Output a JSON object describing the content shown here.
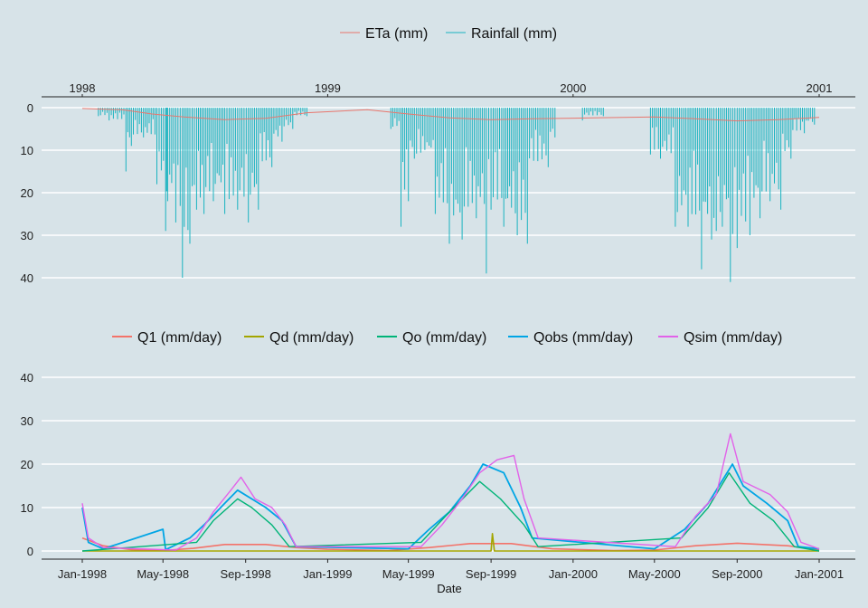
{
  "colors": {
    "background": "#d7e3e8",
    "gridline": "#ffffff",
    "axis": "#222222",
    "ETa": "#e8766d",
    "Rainfall": "#1ab3c0",
    "Q1": "#f3736a",
    "Qd": "#a3a500",
    "Qo": "#00b478",
    "Qobs": "#00a5e5",
    "Qsim": "#e262e9"
  },
  "chart_data": [
    {
      "type": "line",
      "panel": "top",
      "x_type": "date",
      "xlim": [
        "1998-01-01",
        "2001-01-01"
      ],
      "top_axis_ticks": [
        "1998",
        "1999",
        "2000",
        "2001"
      ],
      "y_axis_reversed": true,
      "ylim": [
        0,
        43
      ],
      "y_ticks": [
        0,
        10,
        20,
        30,
        40
      ],
      "legend_position": "top",
      "legend": [
        "ETa (mm)",
        "Rainfall (mm)"
      ],
      "series": [
        {
          "name": "ETa (mm)",
          "color_key": "ETa",
          "points": [
            [
              "1998-01-01",
              0.2
            ],
            [
              "1998-03-01",
              0.5
            ],
            [
              "1998-04-15",
              1.5
            ],
            [
              "1998-06-01",
              2.2
            ],
            [
              "1998-08-01",
              2.8
            ],
            [
              "1998-10-01",
              2.5
            ],
            [
              "1998-12-01",
              1.2
            ],
            [
              "1999-03-01",
              0.5
            ],
            [
              "1999-05-01",
              1.5
            ],
            [
              "1999-07-01",
              2.4
            ],
            [
              "1999-09-01",
              2.8
            ],
            [
              "1999-11-01",
              2.6
            ],
            [
              "2000-02-01",
              2.4
            ],
            [
              "2000-05-01",
              2.2
            ],
            [
              "2000-07-01",
              2.6
            ],
            [
              "2000-09-01",
              3.1
            ],
            [
              "2000-11-01",
              2.8
            ],
            [
              "2001-01-01",
              2.3
            ]
          ]
        },
        {
          "name": "Rainfall (mm)",
          "color_key": "Rainfall",
          "values": [
            [
              "1998-01-25",
              2
            ],
            [
              "1998-02-10",
              3
            ],
            [
              "1998-03-07",
              15
            ],
            [
              "1998-03-15",
              9
            ],
            [
              "1998-04-02",
              7
            ],
            [
              "1998-04-22",
              18
            ],
            [
              "1998-05-05",
              29
            ],
            [
              "1998-05-08",
              22
            ],
            [
              "1998-05-20",
              27
            ],
            [
              "1998-05-30",
              40
            ],
            [
              "1998-06-10",
              32
            ],
            [
              "1998-06-20",
              24
            ],
            [
              "1998-07-01",
              25
            ],
            [
              "1998-07-15",
              22
            ],
            [
              "1998-08-01",
              25
            ],
            [
              "1998-08-20",
              24
            ],
            [
              "1998-09-05",
              27
            ],
            [
              "1998-09-20",
              24
            ],
            [
              "1998-10-10",
              14
            ],
            [
              "1998-10-25",
              8
            ],
            [
              "1998-11-10",
              5
            ],
            [
              "1998-12-01",
              2
            ],
            [
              "1999-04-05",
              5
            ],
            [
              "1999-04-20",
              28
            ],
            [
              "1999-05-01",
              22
            ],
            [
              "1999-05-10",
              12
            ],
            [
              "1999-06-10",
              25
            ],
            [
              "1999-07-01",
              32
            ],
            [
              "1999-07-20",
              31
            ],
            [
              "1999-08-10",
              26
            ],
            [
              "1999-08-25",
              39
            ],
            [
              "1999-09-01",
              24
            ],
            [
              "1999-09-20",
              28
            ],
            [
              "1999-10-10",
              30
            ],
            [
              "1999-10-25",
              32
            ],
            [
              "1999-11-25",
              14
            ],
            [
              "1999-12-05",
              7
            ],
            [
              "2000-01-15",
              3
            ],
            [
              "2000-02-15",
              2
            ],
            [
              "2000-04-25",
              11
            ],
            [
              "2000-05-10",
              12
            ],
            [
              "2000-06-01",
              28
            ],
            [
              "2000-06-20",
              28
            ],
            [
              "2000-07-10",
              38
            ],
            [
              "2000-07-25",
              31
            ],
            [
              "2000-08-01",
              29
            ],
            [
              "2000-08-10",
              28
            ],
            [
              "2000-08-22",
              41
            ],
            [
              "2000-09-01",
              33
            ],
            [
              "2000-09-20",
              30
            ],
            [
              "2000-10-05",
              26
            ],
            [
              "2000-10-20",
              22
            ],
            [
              "2000-11-05",
              24
            ],
            [
              "2000-11-20",
              12
            ],
            [
              "2000-12-10",
              6
            ],
            [
              "2000-12-25",
              4
            ]
          ]
        }
      ]
    },
    {
      "type": "line",
      "panel": "bottom",
      "x_type": "date",
      "xlim": [
        "1998-01-01",
        "2001-01-01"
      ],
      "x_tick_labels": [
        "Jan-1998",
        "May-1998",
        "Sep-1998",
        "Jan-1999",
        "May-1999",
        "Sep-1999",
        "Jan-2000",
        "May-2000",
        "Sep-2000",
        "Jan-2001"
      ],
      "xlabel": "Date",
      "ylim": [
        0,
        43
      ],
      "y_ticks": [
        0,
        10,
        20,
        30,
        40
      ],
      "legend_position": "top",
      "legend": [
        "Q1 (mm/day)",
        "Qd (mm/day)",
        "Qo (mm/day)",
        "Qobs (mm/day)",
        "Qsim (mm/day)"
      ],
      "series": [
        {
          "name": "Q1 (mm/day)",
          "color_key": "Q1",
          "points": [
            [
              "1998-01-01",
              3
            ],
            [
              "1998-02-01",
              1.2
            ],
            [
              "1998-03-15",
              0.3
            ],
            [
              "1998-05-01",
              0.1
            ],
            [
              "1998-06-15",
              0.6
            ],
            [
              "1998-08-01",
              1.5
            ],
            [
              "1998-10-01",
              1.5
            ],
            [
              "1998-11-15",
              0.8
            ],
            [
              "1999-01-01",
              0.4
            ],
            [
              "1999-04-01",
              0.1
            ],
            [
              "1999-06-01",
              0.8
            ],
            [
              "1999-08-01",
              1.7
            ],
            [
              "1999-10-01",
              1.7
            ],
            [
              "1999-12-01",
              0.5
            ],
            [
              "2000-03-01",
              0.1
            ],
            [
              "2000-05-01",
              0.2
            ],
            [
              "2000-07-01",
              1.2
            ],
            [
              "2000-09-01",
              1.8
            ],
            [
              "2000-11-15",
              1.2
            ],
            [
              "2001-01-01",
              0.3
            ]
          ]
        },
        {
          "name": "Qd (mm/day)",
          "color_key": "Qd",
          "points": [
            [
              "1998-01-01",
              0
            ],
            [
              "1999-09-01",
              0
            ],
            [
              "1999-09-03",
              4
            ],
            [
              "1999-09-06",
              0
            ],
            [
              "2001-01-01",
              0
            ]
          ]
        },
        {
          "name": "Qo (mm/day)",
          "color_key": "Qo",
          "points": [
            [
              "1998-01-01",
              0
            ],
            [
              "1998-06-20",
              2
            ],
            [
              "1998-07-15",
              7
            ],
            [
              "1998-08-20",
              12
            ],
            [
              "1998-09-10",
              10
            ],
            [
              "1998-10-10",
              6
            ],
            [
              "1998-11-05",
              1
            ],
            [
              "1999-05-20",
              2
            ],
            [
              "1999-06-25",
              8
            ],
            [
              "1999-08-15",
              16
            ],
            [
              "1999-09-15",
              12
            ],
            [
              "1999-10-20",
              6
            ],
            [
              "1999-11-10",
              1
            ],
            [
              "2000-06-10",
              3
            ],
            [
              "2000-07-20",
              10
            ],
            [
              "2000-08-20",
              18
            ],
            [
              "2000-09-20",
              11
            ],
            [
              "2000-10-25",
              7
            ],
            [
              "2000-11-25",
              1
            ],
            [
              "2001-01-01",
              0
            ]
          ]
        },
        {
          "name": "Qobs (mm/day)",
          "color_key": "Qobs",
          "points": [
            [
              "1998-01-01",
              10
            ],
            [
              "1998-01-10",
              2
            ],
            [
              "1998-02-01",
              0.5
            ],
            [
              "1998-05-01",
              5
            ],
            [
              "1998-05-05",
              0.3
            ],
            [
              "1998-06-10",
              3
            ],
            [
              "1998-07-01",
              6
            ],
            [
              "1998-08-01",
              11
            ],
            [
              "1998-08-20",
              14
            ],
            [
              "1998-09-10",
              12
            ],
            [
              "1998-10-01",
              10
            ],
            [
              "1998-10-25",
              7
            ],
            [
              "1998-11-15",
              1
            ],
            [
              "1999-05-01",
              0.5
            ],
            [
              "1999-06-01",
              5
            ],
            [
              "1999-07-01",
              9
            ],
            [
              "1999-08-01",
              15
            ],
            [
              "1999-08-20",
              20
            ],
            [
              "1999-09-20",
              18
            ],
            [
              "1999-10-15",
              10
            ],
            [
              "1999-11-01",
              3
            ],
            [
              "2000-05-01",
              0.5
            ],
            [
              "2000-06-15",
              5
            ],
            [
              "2000-07-20",
              11
            ],
            [
              "2000-08-25",
              20
            ],
            [
              "2000-09-10",
              15
            ],
            [
              "2000-10-15",
              11
            ],
            [
              "2000-11-15",
              7
            ],
            [
              "2000-12-01",
              1
            ],
            [
              "2001-01-01",
              0.5
            ]
          ]
        },
        {
          "name": "Qsim (mm/day)",
          "color_key": "Qsim",
          "points": [
            [
              "1998-01-01",
              11
            ],
            [
              "1998-01-10",
              3
            ],
            [
              "1998-02-01",
              0.8
            ],
            [
              "1998-05-20",
              0.2
            ],
            [
              "1998-06-20",
              3
            ],
            [
              "1998-07-15",
              9
            ],
            [
              "1998-08-10",
              14
            ],
            [
              "1998-08-25",
              17
            ],
            [
              "1998-09-15",
              12
            ],
            [
              "1998-10-10",
              10
            ],
            [
              "1998-10-30",
              6
            ],
            [
              "1998-11-15",
              1
            ],
            [
              "1999-05-20",
              1
            ],
            [
              "1999-06-20",
              6
            ],
            [
              "1999-07-20",
              12
            ],
            [
              "1999-08-15",
              18
            ],
            [
              "1999-09-10",
              21
            ],
            [
              "1999-10-05",
              22
            ],
            [
              "1999-10-20",
              12
            ],
            [
              "1999-11-10",
              3
            ],
            [
              "2000-06-01",
              1
            ],
            [
              "2000-07-01",
              8
            ],
            [
              "2000-08-01",
              13
            ],
            [
              "2000-08-22",
              27
            ],
            [
              "2000-09-10",
              16
            ],
            [
              "2000-10-20",
              13
            ],
            [
              "2000-11-15",
              9
            ],
            [
              "2000-12-05",
              2
            ],
            [
              "2001-01-01",
              0.5
            ]
          ]
        }
      ]
    }
  ]
}
